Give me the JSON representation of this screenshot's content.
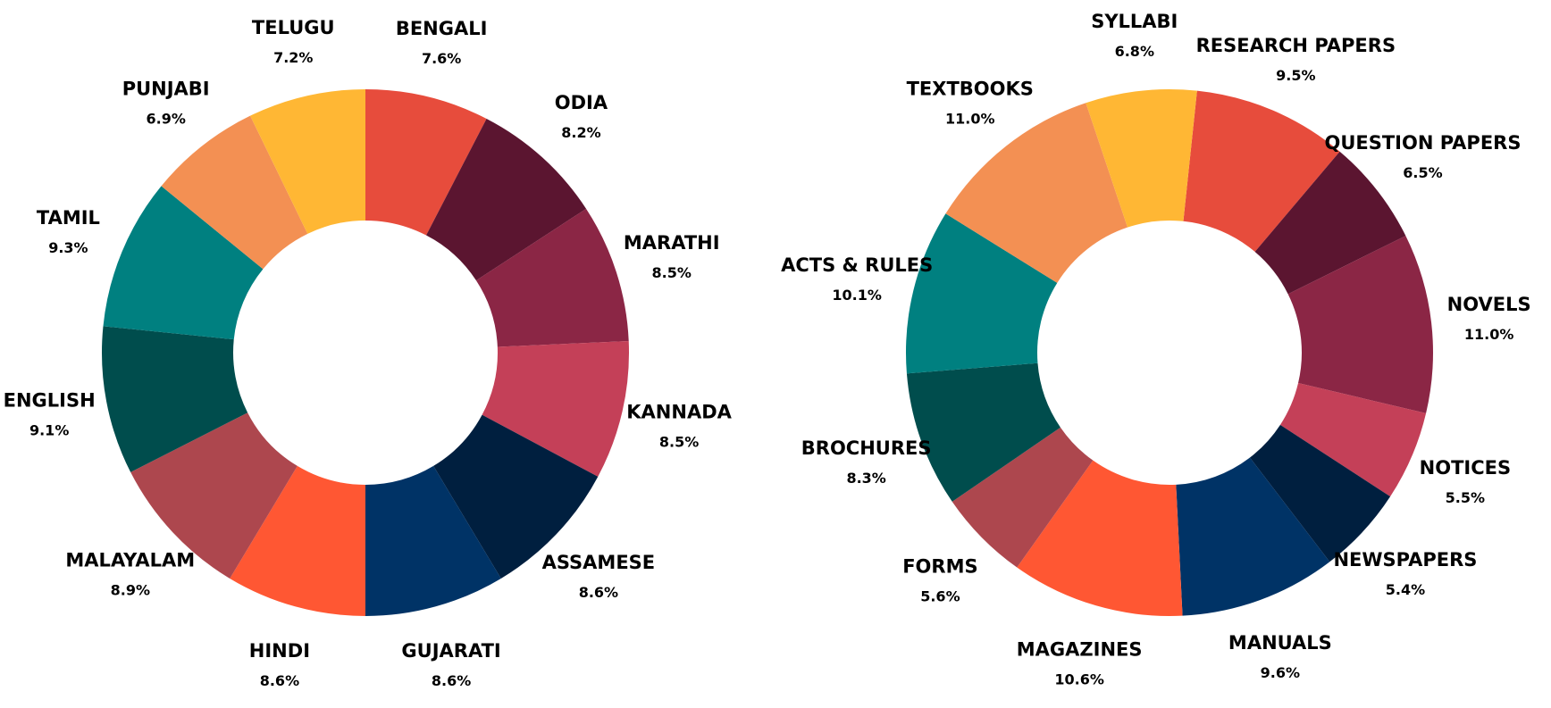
{
  "chart_data": [
    {
      "type": "pie",
      "donut": true,
      "start_angle_deg": 90,
      "direction": "clockwise",
      "categories": [
        "BENGALI",
        "ODIA",
        "MARATHI",
        "KANNADA",
        "ASSAMESE",
        "GUJARATI",
        "HINDI",
        "MALAYALAM",
        "ENGLISH",
        "TAMIL",
        "PUNJABI",
        "TELUGU"
      ],
      "values": [
        7.6,
        8.2,
        8.5,
        8.5,
        8.6,
        8.6,
        8.6,
        8.9,
        9.1,
        9.3,
        6.9,
        7.2
      ],
      "value_labels": [
        "7.6%",
        "8.2%",
        "8.5%",
        "8.5%",
        "8.6%",
        "8.6%",
        "8.6%",
        "8.9%",
        "9.1%",
        "9.3%",
        "6.9%",
        "7.2%"
      ],
      "colors": [
        "#E74C3C",
        "#5B1530",
        "#8B2645",
        "#C44058",
        "#001F3F",
        "#003366",
        "#FF5733",
        "#AD474E",
        "#004D4D",
        "#008080",
        "#F39053",
        "#FFB734"
      ]
    },
    {
      "type": "pie",
      "donut": true,
      "start_angle_deg": 84,
      "direction": "clockwise",
      "categories": [
        "RESEARCH PAPERS",
        "QUESTION PAPERS",
        "NOVELS",
        "NOTICES",
        "NEWSPAPERS",
        "MANUALS",
        "MAGAZINES",
        "FORMS",
        "BROCHURES",
        "ACTS & RULES",
        "TEXTBOOKS",
        "SYLLABI"
      ],
      "values": [
        9.5,
        6.5,
        11.0,
        5.5,
        5.4,
        9.6,
        10.6,
        5.6,
        8.3,
        10.1,
        11.0,
        6.8
      ],
      "value_labels": [
        "9.5%",
        "6.5%",
        "11.0%",
        "5.5%",
        "5.4%",
        "9.6%",
        "10.6%",
        "5.6%",
        "8.3%",
        "10.1%",
        "11.0%",
        "6.8%"
      ],
      "colors": [
        "#E74C3C",
        "#5B1530",
        "#8B2645",
        "#C44058",
        "#001F3F",
        "#003366",
        "#FF5733",
        "#AD474E",
        "#004D4D",
        "#008080",
        "#F39053",
        "#FFB734"
      ]
    }
  ]
}
